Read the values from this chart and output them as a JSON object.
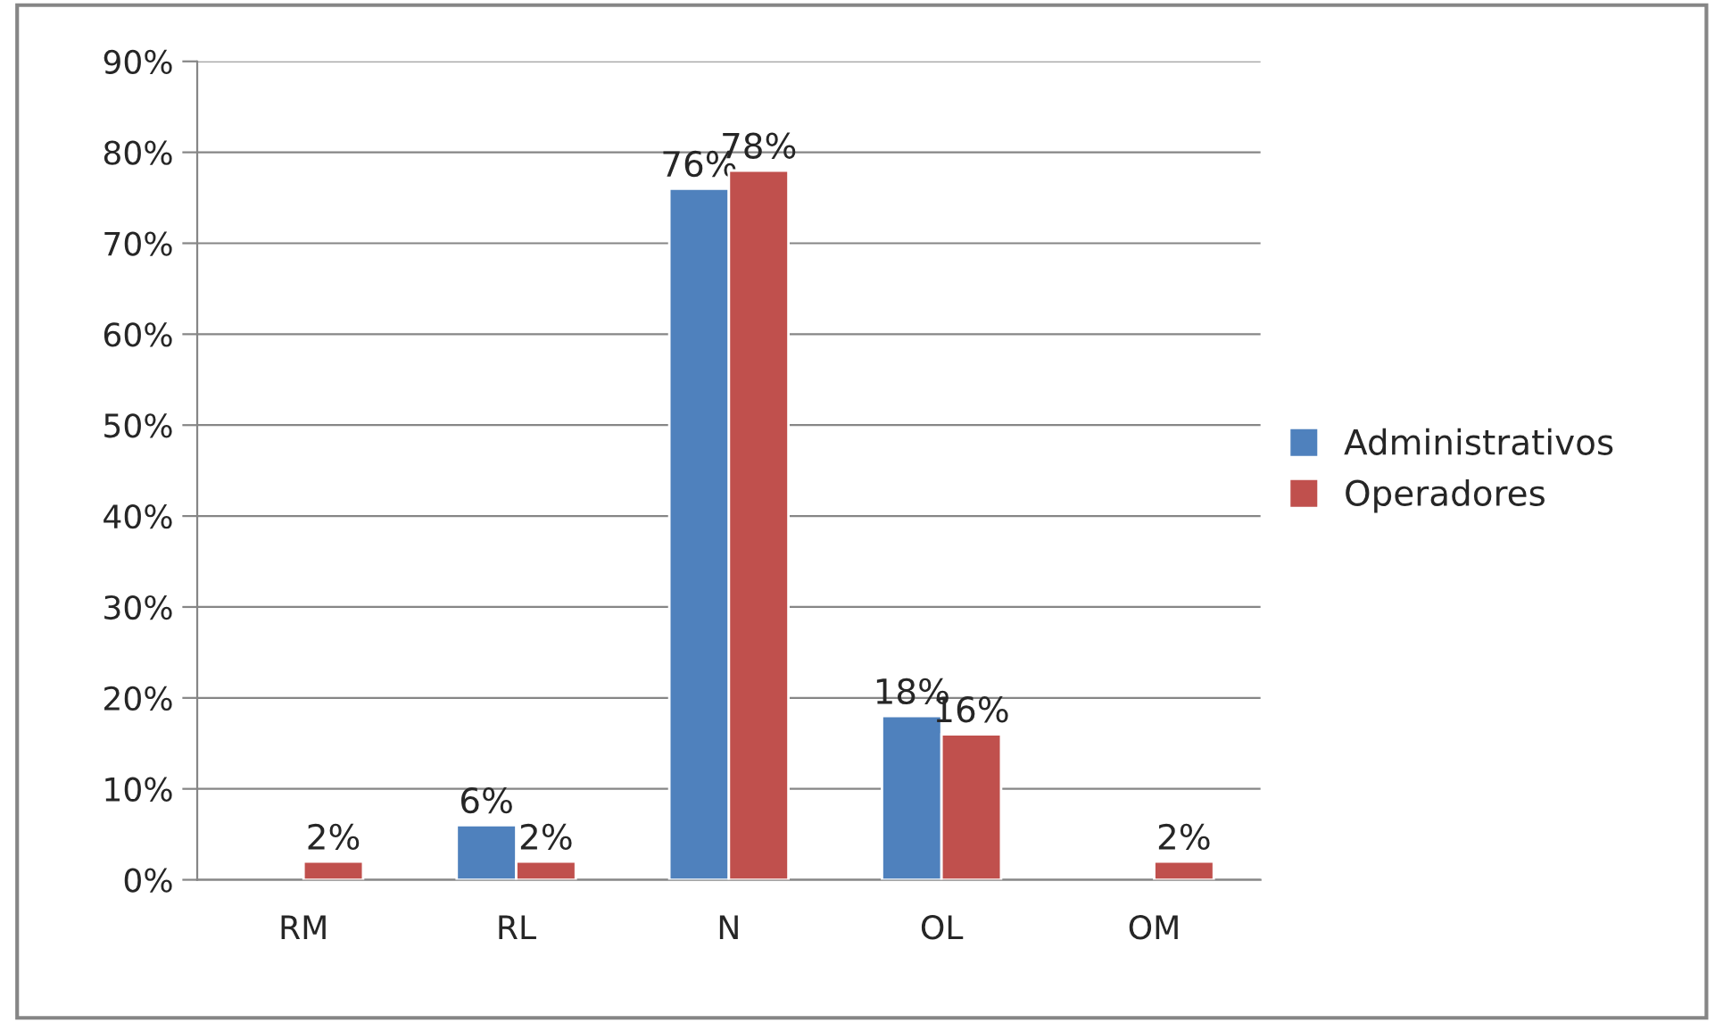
{
  "chart_data": {
    "type": "bar",
    "categories": [
      "RM",
      "RL",
      "N",
      "OL",
      "OM"
    ],
    "series": [
      {
        "name": "Administrativos",
        "color": "#4f81bd",
        "values": [
          null,
          6,
          76,
          18,
          null
        ],
        "value_labels": [
          null,
          "6%",
          "76%",
          "18%",
          null
        ]
      },
      {
        "name": "Operadores",
        "color": "#c0504d",
        "values": [
          2,
          2,
          78,
          16,
          2
        ],
        "value_labels": [
          "2%",
          "2%",
          "78%",
          "16%",
          "2%"
        ]
      }
    ],
    "ylim": [
      0,
      90
    ],
    "yticks": [
      {
        "value": 0,
        "label": "0%"
      },
      {
        "value": 10,
        "label": "10%"
      },
      {
        "value": 20,
        "label": "20%"
      },
      {
        "value": 30,
        "label": "30%"
      },
      {
        "value": 40,
        "label": "40%"
      },
      {
        "value": 50,
        "label": "50%"
      },
      {
        "value": 60,
        "label": "60%"
      },
      {
        "value": 70,
        "label": "70%"
      },
      {
        "value": 80,
        "label": "80%"
      },
      {
        "value": 90,
        "label": "90%"
      }
    ],
    "grid": "y",
    "legend": "right"
  }
}
